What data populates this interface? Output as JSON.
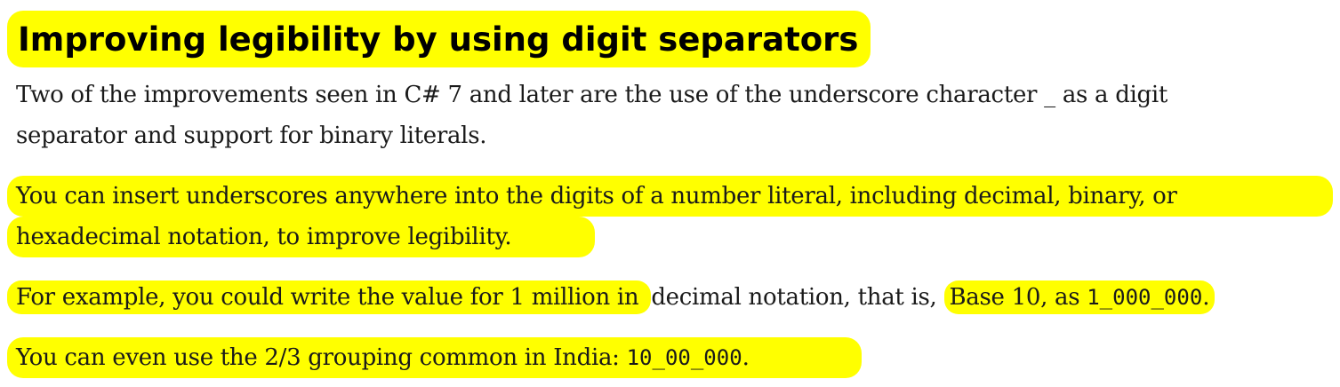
{
  "heading": "Improving legibility by using digit separators",
  "para1": {
    "line1": "Two of the improvements seen in C# 7 and later are the use of the underscore character _ as a digit",
    "line2": "separator and support for binary literals."
  },
  "para2": {
    "line1": "You can insert underscores anywhere into the digits of a number literal, including decimal, binary, or",
    "line2": "hexadecimal notation, to improve legibility."
  },
  "para3": {
    "seg1": "For example, you could write the value for 1 million in ",
    "seg2": "decimal notation, that is, ",
    "seg3": "Base 10, as ",
    "code": "1_000_000",
    "seg4": "."
  },
  "para4": {
    "text": "You can even use the 2/3 grouping common in India: ",
    "code": "10_00_000",
    "end": "."
  },
  "colors": {
    "highlight": "#ffff00",
    "text": "#1a1a1a"
  }
}
